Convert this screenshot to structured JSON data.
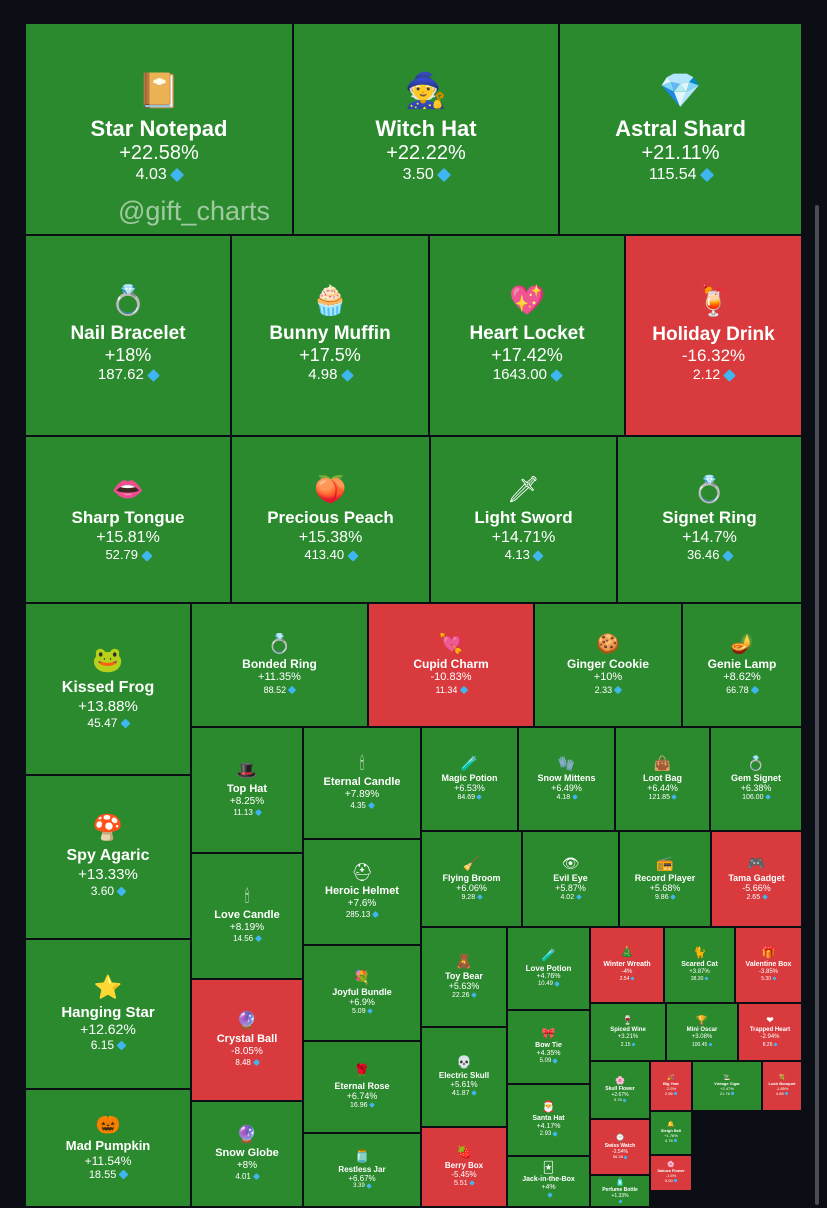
{
  "watermark": "@gift_charts",
  "colors": {
    "up": "#2b8a2e",
    "down": "#d83a3d",
    "background": "#0b0e14",
    "diamond": "#3fb6f0"
  },
  "chart_data": {
    "type": "treemap",
    "metric": "percent change",
    "price_unit_icon": "diamond-icon",
    "items": [
      {
        "name": "Star Notepad",
        "change": "+22.58%",
        "price": "4.03",
        "icon": "📔"
      },
      {
        "name": "Witch Hat",
        "change": "+22.22%",
        "price": "3.50",
        "icon": "🧙"
      },
      {
        "name": "Astral Shard",
        "change": "+21.11%",
        "price": "115.54",
        "icon": "💎"
      },
      {
        "name": "Nail Bracelet",
        "change": "+18%",
        "price": "187.62",
        "icon": "💍"
      },
      {
        "name": "Bunny Muffin",
        "change": "+17.5%",
        "price": "4.98",
        "icon": "🧁"
      },
      {
        "name": "Heart Locket",
        "change": "+17.42%",
        "price": "1643.00",
        "icon": "💖"
      },
      {
        "name": "Holiday Drink",
        "change": "-16.32%",
        "price": "2.12",
        "icon": "🍹"
      },
      {
        "name": "Sharp Tongue",
        "change": "+15.81%",
        "price": "52.79",
        "icon": "👄"
      },
      {
        "name": "Precious Peach",
        "change": "+15.38%",
        "price": "413.40",
        "icon": "🍑"
      },
      {
        "name": "Light Sword",
        "change": "+14.71%",
        "price": "4.13",
        "icon": "🗡"
      },
      {
        "name": "Signet Ring",
        "change": "+14.7%",
        "price": "36.46",
        "icon": "💍"
      },
      {
        "name": "Kissed Frog",
        "change": "+13.88%",
        "price": "45.47",
        "icon": "🐸"
      },
      {
        "name": "Bonded Ring",
        "change": "+11.35%",
        "price": "88.52",
        "icon": "💍"
      },
      {
        "name": "Cupid Charm",
        "change": "-10.83%",
        "price": "11.34",
        "icon": "💘"
      },
      {
        "name": "Ginger Cookie",
        "change": "+10%",
        "price": "2.33",
        "icon": "🍪"
      },
      {
        "name": "Genie Lamp",
        "change": "+8.62%",
        "price": "66.78",
        "icon": "🪔"
      },
      {
        "name": "Spy Agaric",
        "change": "+13.33%",
        "price": "3.60",
        "icon": "🍄"
      },
      {
        "name": "Top Hat",
        "change": "+8.25%",
        "price": "11.13",
        "icon": "🎩"
      },
      {
        "name": "Eternal Candle",
        "change": "+7.89%",
        "price": "4.35",
        "icon": "🕯"
      },
      {
        "name": "Magic Potion",
        "change": "+6.53%",
        "price": "84.69",
        "icon": "🧪"
      },
      {
        "name": "Snow Mittens",
        "change": "+6.49%",
        "price": "4.18",
        "icon": "🧤"
      },
      {
        "name": "Loot Bag",
        "change": "+6.44%",
        "price": "121.85",
        "icon": "👜"
      },
      {
        "name": "Gem Signet",
        "change": "+6.38%",
        "price": "106.00",
        "icon": "💍"
      },
      {
        "name": "Love Candle",
        "change": "+8.19%",
        "price": "14.56",
        "icon": "🕯"
      },
      {
        "name": "Heroic Helmet",
        "change": "+7.6%",
        "price": "285.13",
        "icon": "⛑"
      },
      {
        "name": "Flying Broom",
        "change": "+6.06%",
        "price": "9.28",
        "icon": "🧹"
      },
      {
        "name": "Evil Eye",
        "change": "+5.87%",
        "price": "4.02",
        "icon": "👁"
      },
      {
        "name": "Record Player",
        "change": "+5.68%",
        "price": "9.86",
        "icon": "📻"
      },
      {
        "name": "Tama Gadget",
        "change": "-5.66%",
        "price": "2.65",
        "icon": "🎮"
      },
      {
        "name": "Hanging Star",
        "change": "+12.62%",
        "price": "6.15",
        "icon": "⭐"
      },
      {
        "name": "Crystal Ball",
        "change": "-8.05%",
        "price": "8.48",
        "icon": "🔮"
      },
      {
        "name": "Joyful Bundle",
        "change": "+6.9%",
        "price": "5.09",
        "icon": "💐"
      },
      {
        "name": "Toy Bear",
        "change": "+5.63%",
        "price": "22.26",
        "icon": "🧸"
      },
      {
        "name": "Love Potion",
        "change": "+4.76%",
        "price": "10.49",
        "icon": "🧪"
      },
      {
        "name": "Winter Wreath",
        "change": "-4%",
        "price": "2.54",
        "icon": "🎄"
      },
      {
        "name": "Scared Cat",
        "change": "+3.87%",
        "price": "38.30",
        "icon": "🐈"
      },
      {
        "name": "Valentine Box",
        "change": "-3.85%",
        "price": "5.30",
        "icon": "🎁"
      },
      {
        "name": "Spiced Wine",
        "change": "+3.21%",
        "price": "2.15",
        "icon": "🍷"
      },
      {
        "name": "Mini Oscar",
        "change": "+3.08%",
        "price": "100.45",
        "icon": "🏆"
      },
      {
        "name": "Trapped Heart",
        "change": "-2.94%",
        "price": "8.26",
        "icon": "❤"
      },
      {
        "name": "Mad Pumpkin",
        "change": "+11.54%",
        "price": "18.55",
        "icon": "🎃"
      },
      {
        "name": "Snow Globe",
        "change": "+8%",
        "price": "4.01",
        "icon": "🔮"
      },
      {
        "name": "Eternal Rose",
        "change": "+6.74%",
        "price": "16.96",
        "icon": "🌹"
      },
      {
        "name": "Restless Jar",
        "change": "+6.67%",
        "price": "3.39",
        "icon": "🫙"
      },
      {
        "name": "Electric Skull",
        "change": "+5.61%",
        "price": "41.87",
        "icon": "💀"
      },
      {
        "name": "Berry Box",
        "change": "-5.45%",
        "price": "5.51",
        "icon": "🍓"
      },
      {
        "name": "Bow Tie",
        "change": "+4.35%",
        "price": "5.09",
        "icon": "🎀"
      },
      {
        "name": "Santa Hat",
        "change": "+4.17%",
        "price": "2.93",
        "icon": "🎅"
      },
      {
        "name": "Jack-in-the-Box",
        "change": "+4%",
        "price": "",
        "icon": "🃏"
      },
      {
        "name": "Skull Flower",
        "change": "+2.67%",
        "price": "5.78",
        "icon": "🌸"
      },
      {
        "name": "Big Year",
        "change": "-2.5%",
        "price": "2.56",
        "icon": "🎉"
      },
      {
        "name": "Vintage Cigar",
        "change": "+2.47%",
        "price": "21.76",
        "icon": "🚬"
      },
      {
        "name": "Lush Bouquet",
        "change": "-1.85%",
        "price": "4.65",
        "icon": "💐"
      },
      {
        "name": "Swiss Watch",
        "change": "-2.54%",
        "price": "56.28",
        "icon": "⌚"
      },
      {
        "name": "Sleigh Bell",
        "change": "+1.76%",
        "price": "4.76",
        "icon": "🔔"
      },
      {
        "name": "Sakura Flower",
        "change": "-1.6%",
        "price": "5.00",
        "icon": "🌸"
      },
      {
        "name": "Perfume Bottle",
        "change": "+1.33%",
        "price": "",
        "icon": "🧴"
      }
    ]
  }
}
